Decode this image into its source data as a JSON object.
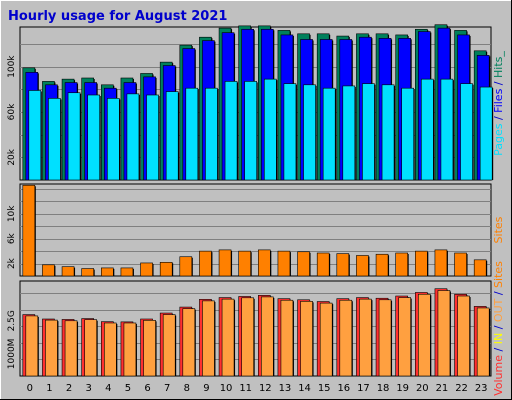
{
  "title": "Hourly usage for August 2021",
  "colors": {
    "title": "#0000cc",
    "frame": "#c0c0c0",
    "plot_bg": "#c0c0c0",
    "grid": "#808080",
    "hits": "#00805c",
    "files": "#0000ff",
    "pages": "#00e0ff",
    "sites": "#ff8000",
    "volume": "#ff3030",
    "in": "#ffff00",
    "out": "#ffa040"
  },
  "chart_data": [
    {
      "type": "bar",
      "id": "hits-files-pages",
      "categories": [
        "0",
        "1",
        "2",
        "3",
        "4",
        "5",
        "6",
        "7",
        "8",
        "9",
        "10",
        "11",
        "12",
        "13",
        "14",
        "15",
        "16",
        "17",
        "18",
        "19",
        "20",
        "21",
        "22",
        "23"
      ],
      "ylim": [
        0,
        135
      ],
      "yticks": [
        {
          "value": 20,
          "label": "20k"
        },
        {
          "value": 60,
          "label": "60k"
        },
        {
          "value": 100,
          "label": "100k"
        }
      ],
      "series": [
        {
          "name": "Hits",
          "color_key": "hits",
          "values": [
            99,
            87,
            89,
            90,
            84,
            90,
            94,
            104,
            119,
            126,
            134,
            136,
            136,
            132,
            129,
            129,
            127,
            129,
            129,
            128,
            133,
            137,
            132,
            114
          ]
        },
        {
          "name": "Files",
          "color_key": "files",
          "values": [
            95,
            84,
            86,
            86,
            81,
            86,
            91,
            101,
            116,
            123,
            130,
            133,
            133,
            128,
            124,
            124,
            124,
            126,
            125,
            125,
            131,
            134,
            128,
            110
          ]
        },
        {
          "name": "Pages",
          "color_key": "pages",
          "values": [
            79,
            72,
            77,
            75,
            72,
            76,
            75,
            78,
            81,
            81,
            87,
            87,
            89,
            85,
            84,
            81,
            83,
            85,
            84,
            81,
            89,
            89,
            85,
            82
          ]
        }
      ],
      "side_label": [
        {
          "text": "Pages",
          "color_key": "pages"
        },
        {
          "text": " / ",
          "color_key": "title"
        },
        {
          "text": "Files",
          "color_key": "files"
        },
        {
          "text": " / ",
          "color_key": "title"
        },
        {
          "text": "Hits",
          "color_key": "hits"
        },
        {
          "text": "_",
          "color_key": "hits"
        }
      ]
    },
    {
      "type": "bar",
      "id": "sites",
      "categories": [
        "0",
        "1",
        "2",
        "3",
        "4",
        "5",
        "6",
        "7",
        "8",
        "9",
        "10",
        "11",
        "12",
        "13",
        "14",
        "15",
        "16",
        "17",
        "18",
        "19",
        "20",
        "21",
        "22",
        "23"
      ],
      "ylim": [
        0,
        14.8
      ],
      "yticks": [
        {
          "value": 2,
          "label": "2k"
        },
        {
          "value": 6,
          "label": "6k"
        },
        {
          "value": 10,
          "label": "10k"
        }
      ],
      "series": [
        {
          "name": "Sites",
          "color_key": "sites",
          "values": [
            14.6,
            1.8,
            1.5,
            1.2,
            1.3,
            1.3,
            2.1,
            2.2,
            3.1,
            4.0,
            4.2,
            4.0,
            4.2,
            4.0,
            3.9,
            3.7,
            3.6,
            3.3,
            3.5,
            3.7,
            4.0,
            4.2,
            3.7,
            2.6
          ]
        }
      ],
      "side_label": [
        {
          "text": "Sites",
          "color_key": "sites"
        }
      ]
    },
    {
      "type": "bar",
      "id": "volume",
      "categories": [
        "0",
        "1",
        "2",
        "3",
        "4",
        "5",
        "6",
        "7",
        "8",
        "9",
        "10",
        "11",
        "12",
        "13",
        "14",
        "15",
        "16",
        "17",
        "18",
        "19",
        "20",
        "21",
        "22",
        "23"
      ],
      "ylim": [
        0,
        4.3
      ],
      "yticks": [
        {
          "value": 1.0,
          "label": "1000M"
        },
        {
          "value": 2.5,
          "label": "2.5G"
        }
      ],
      "series": [
        {
          "name": "Volume",
          "color_key": "volume",
          "values": [
            2.78,
            2.58,
            2.56,
            2.6,
            2.46,
            2.45,
            2.58,
            2.85,
            3.12,
            3.47,
            3.55,
            3.6,
            3.65,
            3.5,
            3.45,
            3.37,
            3.5,
            3.55,
            3.52,
            3.62,
            3.78,
            3.95,
            3.7,
            3.15
          ]
        },
        {
          "name": "OUT",
          "color_key": "out",
          "values": [
            2.72,
            2.53,
            2.5,
            2.55,
            2.4,
            2.4,
            2.52,
            2.78,
            3.05,
            3.4,
            3.48,
            3.54,
            3.58,
            3.43,
            3.38,
            3.3,
            3.43,
            3.48,
            3.45,
            3.55,
            3.7,
            3.87,
            3.62,
            3.08
          ]
        }
      ],
      "side_label": [
        {
          "text": "Volume",
          "color_key": "volume"
        },
        {
          "text": " / ",
          "color_key": "title"
        },
        {
          "text": "IN",
          "color_key": "in"
        },
        {
          "text": " / ",
          "color_key": "title"
        },
        {
          "text": "OUT",
          "color_key": "out"
        },
        {
          "text": " / ",
          "color_key": "title"
        },
        {
          "text": "Sites",
          "color_key": "sites"
        }
      ]
    }
  ]
}
